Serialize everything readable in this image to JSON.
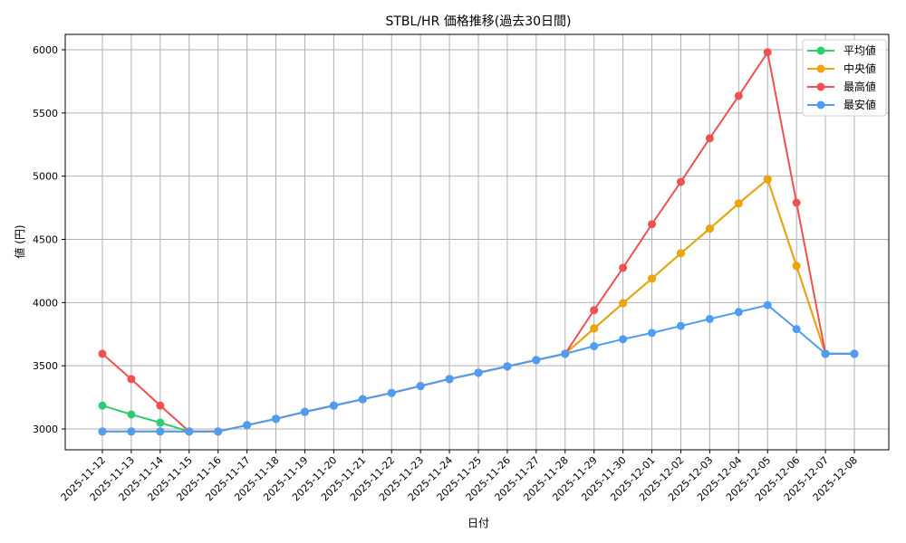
{
  "chart_data": {
    "type": "line",
    "title": "STBL/HR 価格推移(過去30日間)",
    "xlabel": "日付",
    "ylabel": "値 (円)",
    "ylim": [
      2830,
      6110
    ],
    "yticks": [
      3000,
      3500,
      4000,
      4500,
      5000,
      5500,
      6000
    ],
    "grid": true,
    "legend_position": "upper right",
    "categories": [
      "2025-11-12",
      "2025-11-13",
      "2025-11-14",
      "2025-11-15",
      "2025-11-16",
      "2025-11-17",
      "2025-11-18",
      "2025-11-19",
      "2025-11-20",
      "2025-11-21",
      "2025-11-22",
      "2025-11-23",
      "2025-11-24",
      "2025-11-25",
      "2025-11-26",
      "2025-11-27",
      "2025-11-28",
      "2025-11-29",
      "2025-11-30",
      "2025-12-01",
      "2025-12-02",
      "2025-12-03",
      "2025-12-04",
      "2025-12-05",
      "2025-12-06",
      "2025-12-07",
      "2025-12-08"
    ],
    "series": [
      {
        "name": "平均値",
        "color": "#2ecc71",
        "values": [
          3185,
          3115,
          3050,
          2980,
          2980,
          3030,
          3080,
          3135,
          3185,
          3235,
          3285,
          3340,
          3395,
          3445,
          3495,
          3545,
          3595,
          3795,
          3995,
          4190,
          4390,
          4585,
          4785,
          4975,
          4290,
          3595,
          3595
        ]
      },
      {
        "name": "中央値",
        "color": "#f0a30a",
        "values": [
          2980,
          2980,
          2980,
          2980,
          2980,
          3030,
          3080,
          3135,
          3185,
          3235,
          3285,
          3340,
          3395,
          3445,
          3495,
          3545,
          3595,
          3795,
          3995,
          4190,
          4390,
          4585,
          4785,
          4975,
          4290,
          3595,
          3595
        ]
      },
      {
        "name": "最高値",
        "color": "#f05050",
        "values": [
          3595,
          3395,
          3185,
          2980,
          2980,
          3030,
          3080,
          3135,
          3185,
          3235,
          3285,
          3340,
          3395,
          3445,
          3495,
          3545,
          3595,
          3940,
          4275,
          4620,
          4955,
          5300,
          5635,
          5980,
          4790,
          3595,
          3595
        ]
      },
      {
        "name": "最安値",
        "color": "#4d9cf5",
        "values": [
          2980,
          2980,
          2980,
          2980,
          2980,
          3030,
          3080,
          3135,
          3185,
          3235,
          3285,
          3340,
          3395,
          3445,
          3495,
          3545,
          3595,
          3655,
          3710,
          3760,
          3815,
          3870,
          3925,
          3980,
          3790,
          3595,
          3595
        ]
      }
    ]
  }
}
